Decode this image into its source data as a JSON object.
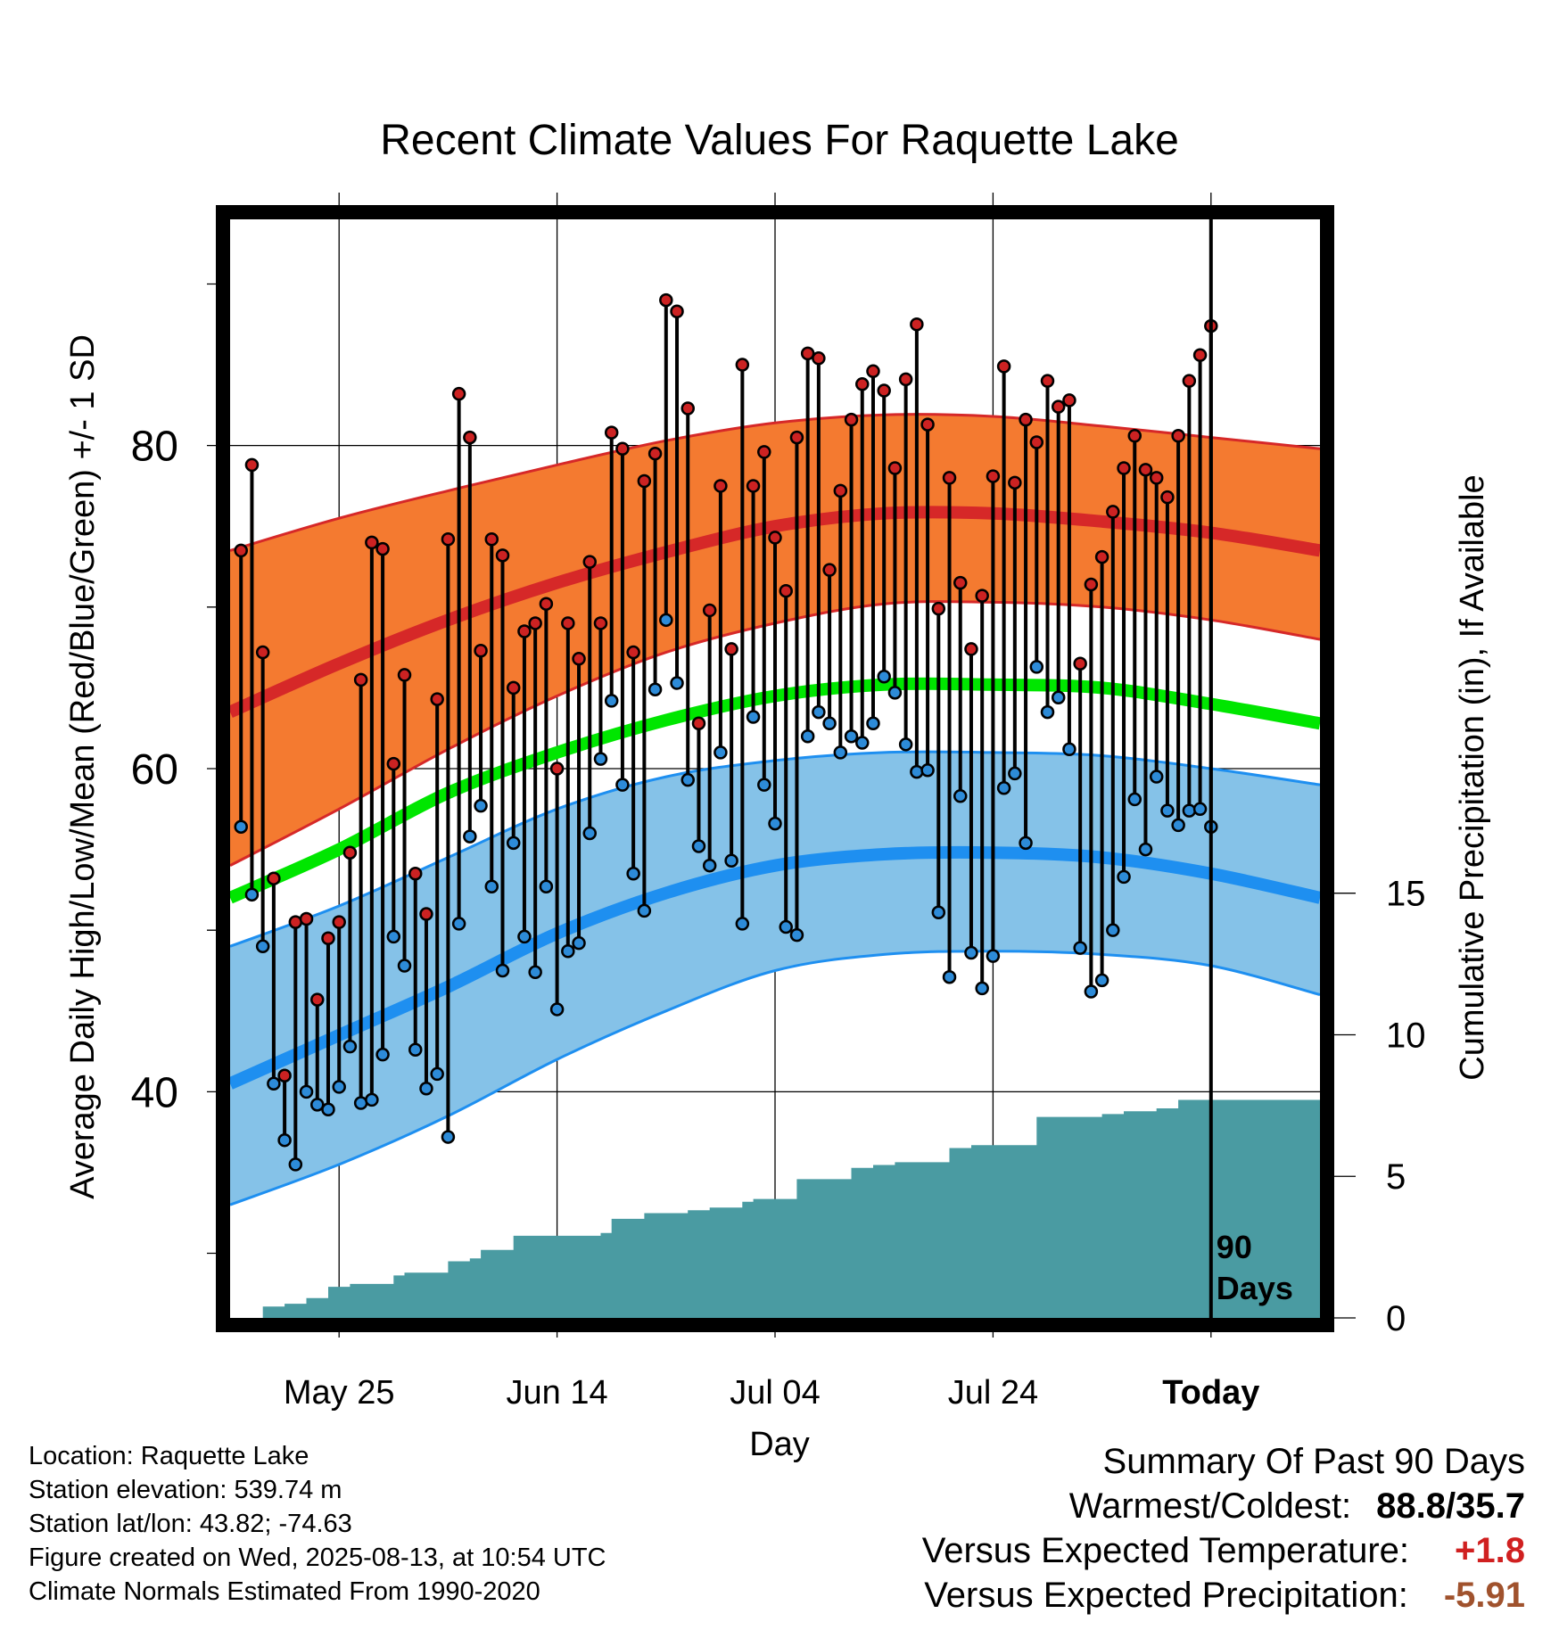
{
  "chart_data": {
    "type": "line",
    "title": "Recent Climate Values For Raquette Lake",
    "xlabel": "Day",
    "ylabel": "Average Daily High/Low/Mean (Red/Blue/Green) +/- 1 SD",
    "y2label": "Cumulative Precipitation (in), If Available",
    "ylim": [
      26,
      94
    ],
    "y2lim": [
      0,
      38.8
    ],
    "xlim": [
      0,
      100
    ],
    "x_ticks": [
      {
        "x": 10,
        "label": "May 25"
      },
      {
        "x": 30,
        "label": "Jun 14"
      },
      {
        "x": 50,
        "label": "Jul 04"
      },
      {
        "x": 70,
        "label": "Jul 24"
      },
      {
        "x": 90,
        "label": "Today"
      }
    ],
    "y_ticks": [
      {
        "y": 40,
        "label": "40"
      },
      {
        "y": 60,
        "label": "60"
      },
      {
        "y": 80,
        "label": "80"
      }
    ],
    "y_minor_ticks": [
      30,
      50,
      70,
      90
    ],
    "y2_ticks": [
      {
        "y": 0,
        "label": "0"
      },
      {
        "y": 5,
        "label": "5"
      },
      {
        "y": 10,
        "label": "10"
      },
      {
        "y": 15,
        "label": "15"
      }
    ],
    "today_x": 90,
    "today_label": [
      "90",
      "Days"
    ],
    "normal_high": {
      "x": [
        0,
        10,
        20,
        30,
        40,
        50,
        60,
        70,
        80,
        90,
        100
      ],
      "mean": [
        63.5,
        66.5,
        69.2,
        71.5,
        73.4,
        75.0,
        75.8,
        75.8,
        75.3,
        74.6,
        73.5
      ],
      "upper": [
        73.5,
        75.5,
        77.2,
        78.8,
        80.3,
        81.4,
        81.9,
        81.8,
        81.2,
        80.5,
        79.8
      ],
      "lower": [
        54.0,
        57.5,
        61.2,
        64.5,
        67.2,
        69.0,
        70.2,
        70.3,
        70.0,
        69.2,
        68.0
      ],
      "color": "#f47a30",
      "line_color": "#d62828"
    },
    "normal_mean": {
      "x": [
        0,
        10,
        20,
        30,
        40,
        50,
        60,
        70,
        80,
        90,
        100
      ],
      "values": [
        52.0,
        55.0,
        58.5,
        61.0,
        63.0,
        64.5,
        65.2,
        65.2,
        65.0,
        64.0,
        62.8
      ],
      "color": "#00e600"
    },
    "normal_low": {
      "x": [
        0,
        10,
        20,
        30,
        40,
        50,
        60,
        70,
        80,
        90,
        100
      ],
      "mean": [
        40.5,
        43.5,
        46.5,
        49.8,
        52.3,
        54.0,
        54.7,
        54.8,
        54.5,
        53.5,
        52.0
      ],
      "upper": [
        49.0,
        51.5,
        54.5,
        57.5,
        59.5,
        60.5,
        61.0,
        61.0,
        60.8,
        60.0,
        59.0
      ],
      "lower": [
        33.0,
        35.5,
        38.5,
        42.0,
        45.0,
        47.5,
        48.5,
        48.7,
        48.5,
        47.8,
        46.0
      ],
      "color": "#85c2e8",
      "line_color": "#1e8ff0"
    },
    "highs": [
      73.5,
      78.8,
      67.2,
      53.2,
      41.0,
      50.5,
      50.7,
      45.7,
      49.5,
      50.5,
      54.8,
      65.5,
      74.0,
      73.6,
      60.3,
      65.8,
      53.5,
      51.0,
      64.3,
      74.2,
      83.2,
      80.5,
      67.3,
      74.2,
      73.2,
      65.0,
      68.5,
      69.0,
      70.2,
      60.0,
      69.0,
      66.8,
      72.8,
      69.0,
      80.8,
      79.8,
      67.2,
      77.8,
      79.5,
      89.0,
      88.3,
      82.3,
      62.8,
      69.8,
      77.5,
      67.4,
      85.0,
      77.5,
      79.6,
      74.3,
      71.0,
      80.5,
      85.7,
      85.4,
      72.3,
      77.2,
      81.6,
      83.8,
      84.6,
      83.4,
      78.6,
      84.1,
      87.5,
      81.3,
      69.9,
      78.0,
      71.5,
      67.4,
      70.7,
      78.1,
      84.9,
      77.7,
      81.6,
      80.2,
      84.0,
      82.4,
      82.8,
      66.5,
      71.4,
      73.1,
      75.9,
      78.6,
      80.6,
      78.5,
      78.0,
      76.8,
      80.6,
      84.0,
      85.6,
      87.4
    ],
    "lows": [
      56.4,
      52.2,
      49.0,
      40.5,
      37.0,
      35.5,
      40.0,
      39.2,
      38.9,
      40.3,
      42.8,
      39.3,
      39.5,
      42.3,
      49.6,
      47.8,
      42.6,
      40.2,
      41.1,
      37.2,
      50.4,
      55.8,
      57.7,
      52.7,
      47.5,
      55.4,
      49.6,
      47.4,
      52.7,
      45.1,
      48.7,
      49.2,
      56.0,
      60.6,
      64.2,
      59.0,
      53.5,
      51.2,
      64.9,
      69.2,
      65.3,
      59.3,
      55.2,
      54.0,
      61.0,
      54.3,
      50.4,
      63.2,
      59.0,
      56.6,
      50.2,
      49.7,
      62.0,
      63.5,
      62.8,
      61.0,
      62.0,
      61.6,
      62.8,
      65.7,
      64.7,
      61.5,
      59.8,
      59.9,
      51.1,
      47.1,
      58.3,
      48.6,
      46.4,
      48.4,
      58.8,
      59.7,
      55.4,
      66.3,
      63.5,
      64.4,
      61.2,
      48.9,
      46.2,
      46.9,
      50.0,
      53.3,
      58.1,
      55.0,
      59.5,
      57.4,
      56.5,
      57.4,
      57.5,
      56.4
    ],
    "precip_cumulative": {
      "x": [
        2,
        3,
        5,
        7,
        9,
        11,
        13,
        15,
        16,
        17,
        18,
        20,
        22,
        23,
        25,
        26,
        28,
        30,
        32,
        34,
        35,
        36,
        38,
        40,
        42,
        44,
        46,
        47,
        48,
        50,
        52,
        53,
        54,
        56,
        57,
        58,
        59,
        61,
        63,
        65,
        66,
        67,
        68,
        70,
        72,
        73,
        74,
        75,
        77,
        78,
        80,
        81,
        82,
        83,
        85,
        87,
        89,
        91,
        93,
        100
      ],
      "values": [
        0.0,
        0.4,
        0.5,
        0.7,
        1.1,
        1.2,
        1.2,
        1.5,
        1.6,
        1.6,
        1.6,
        2.0,
        2.1,
        2.4,
        2.4,
        2.9,
        2.9,
        2.9,
        2.9,
        3.0,
        3.5,
        3.5,
        3.7,
        3.7,
        3.8,
        3.9,
        3.9,
        4.1,
        4.2,
        4.2,
        4.9,
        4.9,
        4.9,
        4.9,
        5.3,
        5.3,
        5.4,
        5.5,
        5.5,
        5.5,
        6.0,
        6.0,
        6.1,
        6.1,
        6.1,
        6.1,
        7.1,
        7.1,
        7.1,
        7.1,
        7.2,
        7.2,
        7.3,
        7.3,
        7.4,
        7.7,
        7.7,
        7.7,
        7.7,
        7.7
      ],
      "color": "#4a9ba2"
    },
    "high_point_color": "#cc2222",
    "low_point_color": "#2d8bd8"
  },
  "info": {
    "location": "Location: Raquette Lake",
    "elevation": "Station elevation: 539.74 m",
    "latlon": "Station lat/lon: 43.82; -74.63",
    "created": "Figure created on Wed, 2025-08-13, at 10:54 UTC",
    "normals": "Climate Normals Estimated From 1990-2020"
  },
  "summary": {
    "heading": "Summary Of Past 90 Days",
    "warm_label": "Warmest/Coldest:",
    "warm_value": "88.8/35.7",
    "temp_label": "Versus Expected Temperature:",
    "temp_value": "+1.8",
    "temp_color": "#d02020",
    "prec_label": "Versus Expected Precipitation:",
    "prec_value": "-5.91",
    "prec_color": "#a0522d"
  }
}
